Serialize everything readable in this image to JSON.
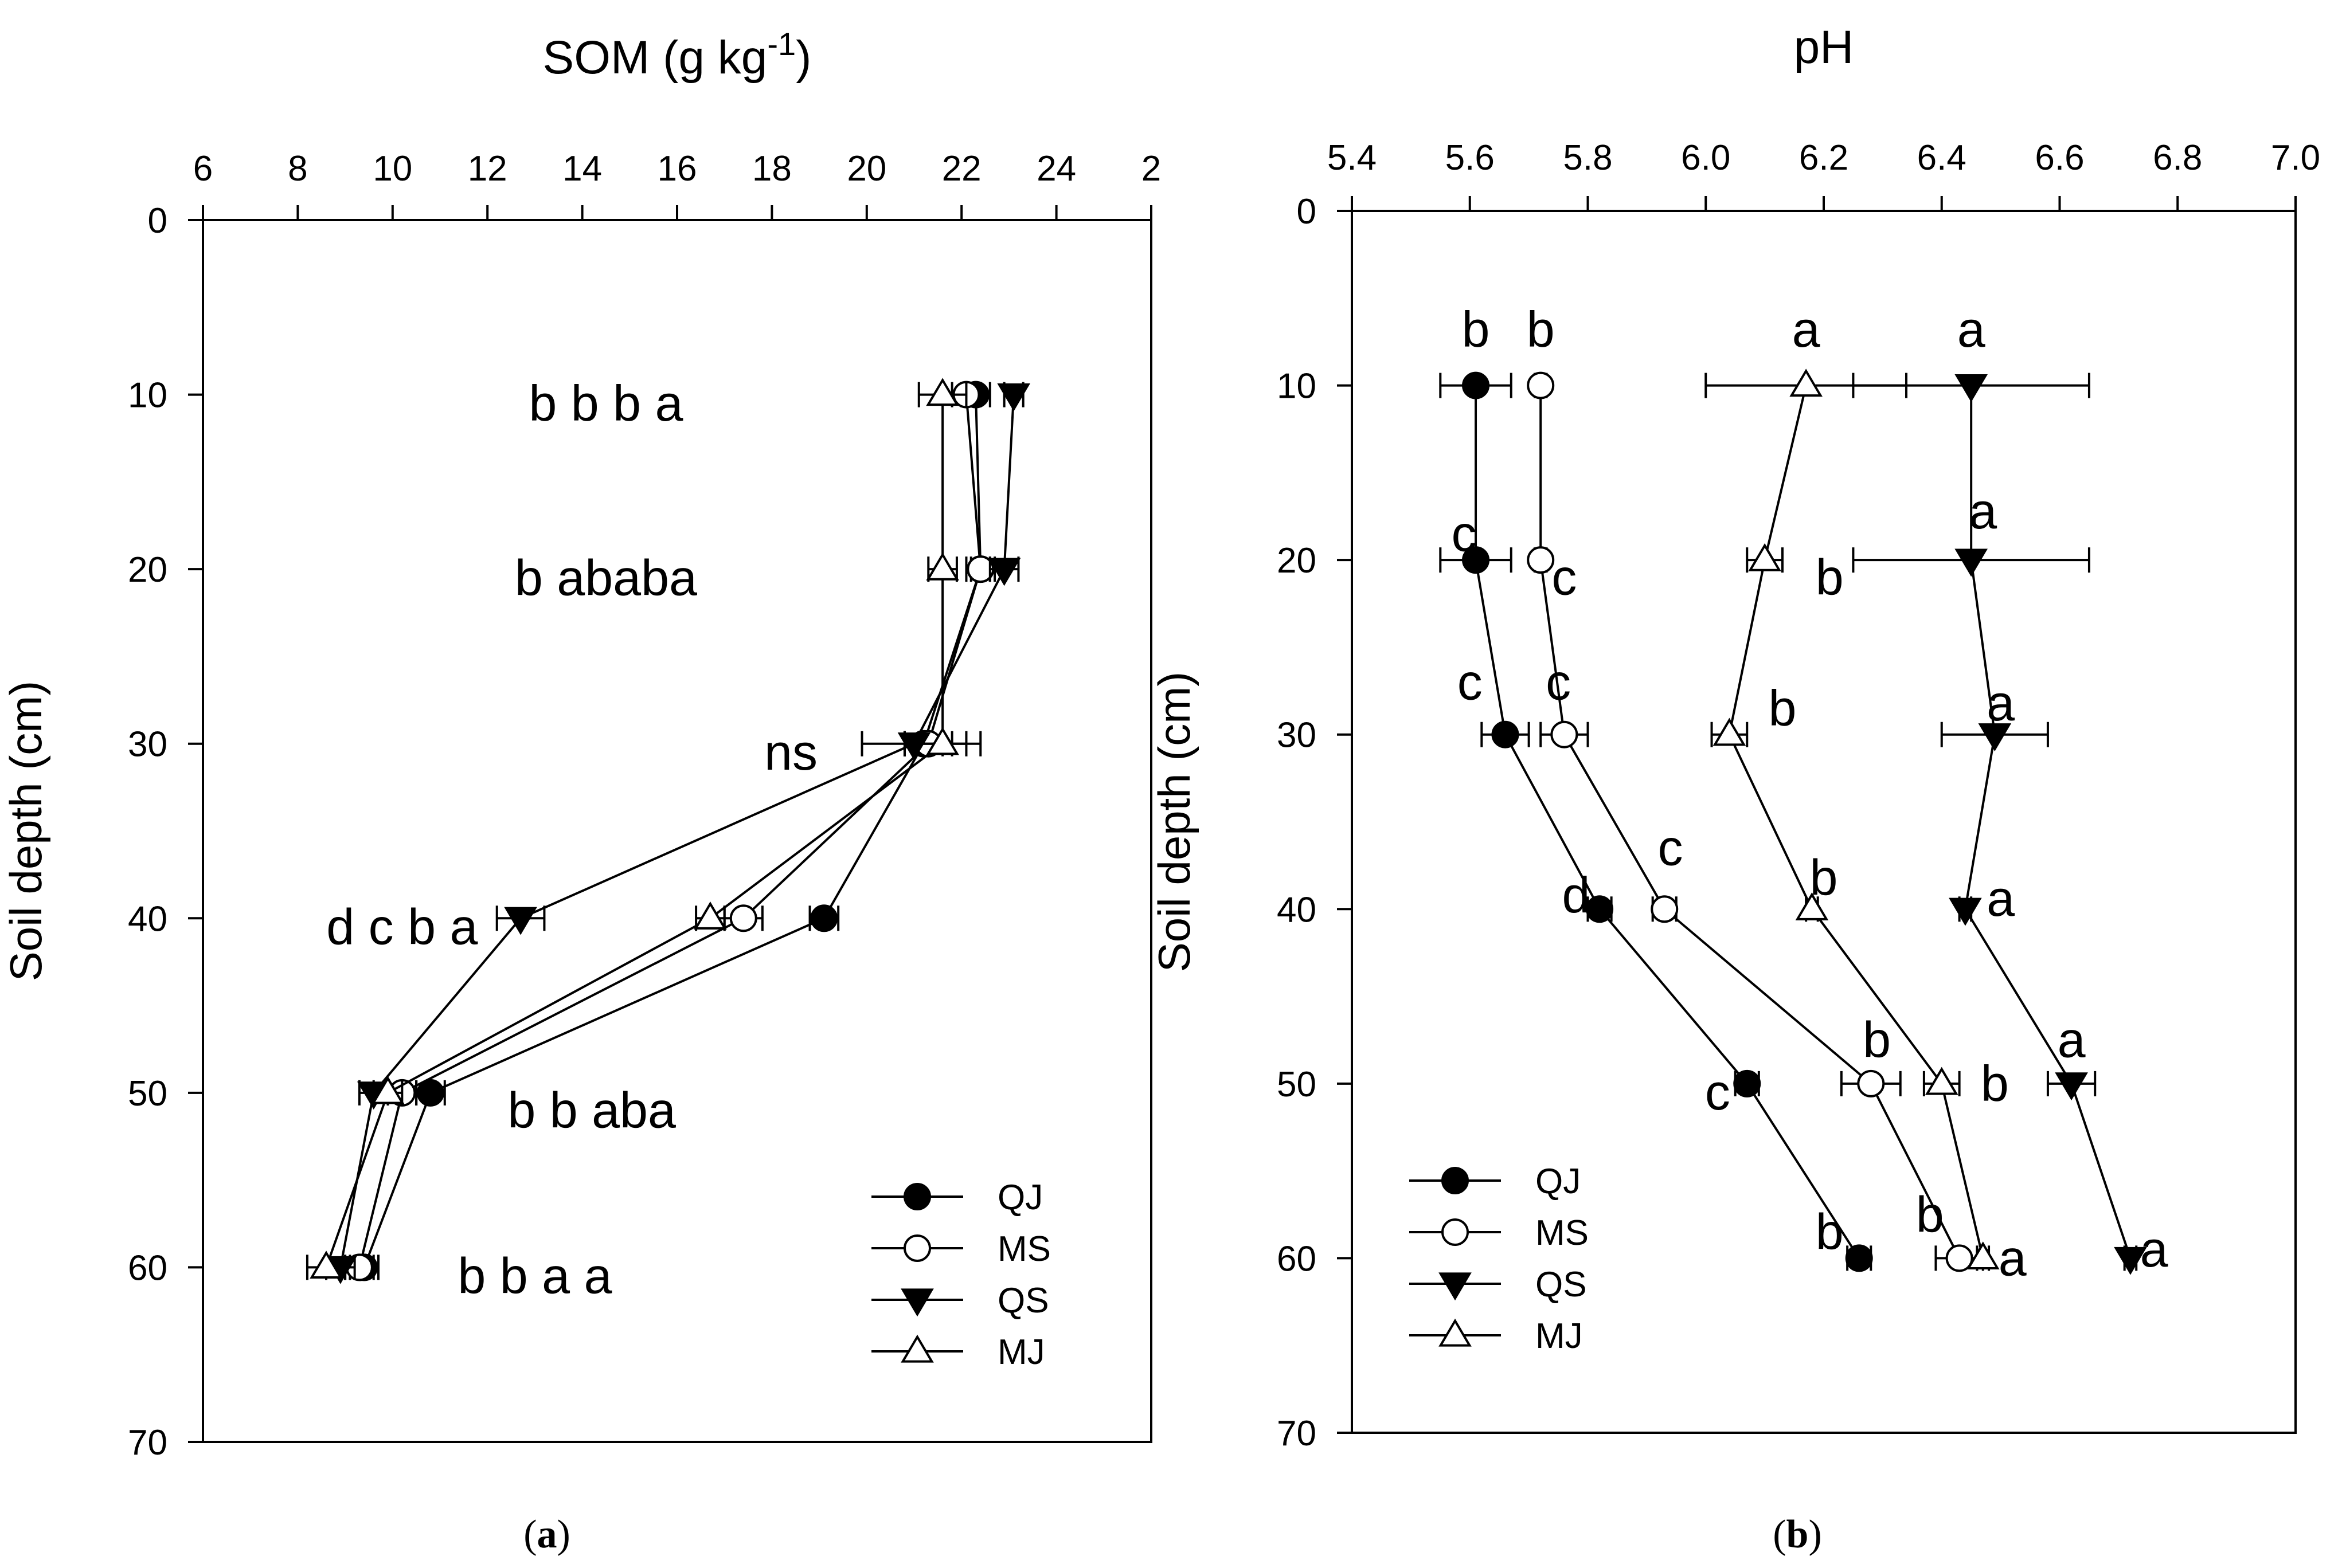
{
  "chart_data": [
    {
      "type": "line",
      "panel_label": "a",
      "title": "SOM (g kg",
      "title_superscript": "-1",
      "title_close": ")",
      "xlabel": "",
      "ylabel": "Soil depth (cm)",
      "xlim": [
        6,
        26
      ],
      "ylim": [
        0,
        70
      ],
      "x_ticks": [
        "6",
        "8",
        "10",
        "12",
        "14",
        "16",
        "18",
        "20",
        "22",
        "24",
        "2"
      ],
      "y_ticks": [
        "0",
        "10",
        "20",
        "30",
        "40",
        "50",
        "60",
        "70"
      ],
      "legend_position": "bottom-right",
      "depths": [
        10,
        20,
        30,
        40,
        50,
        60
      ],
      "series": [
        {
          "name": "QJ",
          "marker": "filled-circle",
          "values": [
            22.3,
            22.4,
            21.2,
            19.1,
            10.8,
            9.4
          ],
          "error": [
            0.3,
            0.2,
            0.4,
            0.3,
            0.3,
            0.3
          ]
        },
        {
          "name": "MS",
          "marker": "open-circle",
          "values": [
            22.1,
            22.4,
            21.3,
            17.4,
            10.2,
            9.3
          ],
          "error": [
            0.3,
            0.3,
            0.5,
            0.4,
            0.3,
            0.3
          ]
        },
        {
          "name": "QS",
          "marker": "filled-triangle-down",
          "values": [
            23.1,
            22.9,
            21.0,
            12.7,
            9.6,
            8.9
          ],
          "error": [
            0.2,
            0.3,
            1.1,
            0.5,
            0.3,
            0.3
          ]
        },
        {
          "name": "MJ",
          "marker": "open-triangle-up",
          "values": [
            21.6,
            21.6,
            21.6,
            16.7,
            9.9,
            8.6
          ],
          "error": [
            0.5,
            0.3,
            0.8,
            0.3,
            0.3,
            0.4
          ]
        }
      ],
      "annotations": [
        {
          "text": "b b b a",
          "x": 14.5,
          "y": 10.5
        },
        {
          "text": "b ababa",
          "x": 14.5,
          "y": 20.5
        },
        {
          "text": "ns",
          "x": 18.4,
          "y": 30.5
        },
        {
          "text": "d c b a",
          "x": 10.2,
          "y": 40.5
        },
        {
          "text": "b b aba",
          "x": 14.2,
          "y": 51.0
        },
        {
          "text": "b b a a",
          "x": 13.0,
          "y": 60.5
        }
      ]
    },
    {
      "type": "line",
      "panel_label": "b",
      "title": "pH",
      "xlabel": "",
      "ylabel": "Soil depth (cm)",
      "xlim": [
        5.4,
        7.0
      ],
      "ylim": [
        0,
        70
      ],
      "x_ticks": [
        "5.4",
        "5.6",
        "5.8",
        "6.0",
        "6.2",
        "6.4",
        "6.6",
        "6.8",
        "7.0"
      ],
      "y_ticks": [
        "0",
        "10",
        "20",
        "30",
        "40",
        "50",
        "60",
        "70"
      ],
      "legend_position": "bottom-left",
      "depths": [
        10,
        20,
        30,
        40,
        50,
        60
      ],
      "series": [
        {
          "name": "QJ",
          "marker": "filled-circle",
          "values": [
            5.61,
            5.61,
            5.66,
            5.82,
            6.07,
            6.26
          ],
          "error": [
            0.06,
            0.06,
            0.04,
            0.02,
            0.02,
            0.02
          ]
        },
        {
          "name": "MS",
          "marker": "open-circle",
          "values": [
            5.72,
            5.72,
            5.76,
            5.93,
            6.28,
            6.43
          ],
          "error": [
            0.01,
            0.01,
            0.04,
            0.02,
            0.05,
            0.04
          ]
        },
        {
          "name": "QS",
          "marker": "filled-triangle-down",
          "values": [
            6.45,
            6.45,
            6.49,
            6.44,
            6.62,
            6.72
          ],
          "error": [
            0.2,
            0.2,
            0.09,
            0.01,
            0.04,
            0.01
          ]
        },
        {
          "name": "MJ",
          "marker": "open-triangle-up",
          "values": [
            6.17,
            6.1,
            6.04,
            6.18,
            6.4,
            6.47
          ],
          "error": [
            0.17,
            0.03,
            0.03,
            0.01,
            0.03,
            0.01
          ]
        }
      ],
      "annotations": [
        {
          "text": "b",
          "x": 5.61,
          "y": 6.8
        },
        {
          "text": "b",
          "x": 5.72,
          "y": 6.8
        },
        {
          "text": "a",
          "x": 6.17,
          "y": 6.8
        },
        {
          "text": "a",
          "x": 6.45,
          "y": 6.8
        },
        {
          "text": "a",
          "x": 6.47,
          "y": 17.2
        },
        {
          "text": "c",
          "x": 5.59,
          "y": 18.5
        },
        {
          "text": "c",
          "x": 5.76,
          "y": 21.0
        },
        {
          "text": "b",
          "x": 6.21,
          "y": 21.0
        },
        {
          "text": "c",
          "x": 5.6,
          "y": 27.0
        },
        {
          "text": "c",
          "x": 5.75,
          "y": 27.0
        },
        {
          "text": "b",
          "x": 6.13,
          "y": 28.5
        },
        {
          "text": "a",
          "x": 6.5,
          "y": 28.2
        },
        {
          "text": "c",
          "x": 5.94,
          "y": 36.5
        },
        {
          "text": "b",
          "x": 6.2,
          "y": 38.2
        },
        {
          "text": "d",
          "x": 5.78,
          "y": 39.2
        },
        {
          "text": "a",
          "x": 6.5,
          "y": 39.4
        },
        {
          "text": "b",
          "x": 6.29,
          "y": 47.5
        },
        {
          "text": "a",
          "x": 6.62,
          "y": 47.5
        },
        {
          "text": "c",
          "x": 6.02,
          "y": 50.5
        },
        {
          "text": "b",
          "x": 6.49,
          "y": 50.0
        },
        {
          "text": "b",
          "x": 6.21,
          "y": 58.5
        },
        {
          "text": "b",
          "x": 6.38,
          "y": 57.5
        },
        {
          "text": "a",
          "x": 6.52,
          "y": 60.0
        },
        {
          "text": "a",
          "x": 6.76,
          "y": 59.5
        }
      ]
    }
  ]
}
